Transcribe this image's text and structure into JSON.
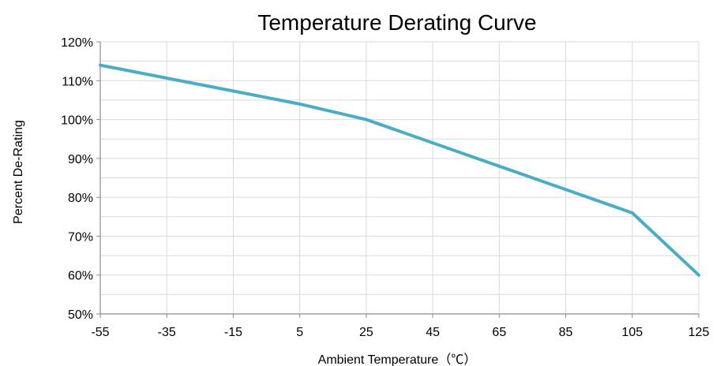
{
  "chart_data": {
    "type": "line",
    "title": "Temperature Derating Curve",
    "xlabel": "Ambient Temperature（℃）",
    "ylabel": "Percent De-Rating",
    "x_ticks": [
      -55,
      -35,
      -15,
      5,
      25,
      45,
      65,
      85,
      105,
      125
    ],
    "x_tick_labels": [
      "-55",
      "-35",
      "-15",
      "5",
      "25",
      "45",
      "65",
      "85",
      "105",
      "125"
    ],
    "y_ticks": [
      50,
      60,
      70,
      80,
      90,
      100,
      110,
      120
    ],
    "y_tick_labels": [
      "50%",
      "60%",
      "70%",
      "80%",
      "90%",
      "100%",
      "110%",
      "120%"
    ],
    "xlim": [
      -55,
      125
    ],
    "ylim": [
      50,
      120
    ],
    "grid": true,
    "legend": "none",
    "series": [
      {
        "color": "#4bacc6",
        "x": [
          -55,
          5,
          25,
          105,
          125
        ],
        "y": [
          114,
          104,
          100,
          76,
          60
        ]
      }
    ]
  },
  "colors": {
    "grid": "#d9d9d9",
    "axis": "#8c8c8c",
    "text": "#000000"
  }
}
